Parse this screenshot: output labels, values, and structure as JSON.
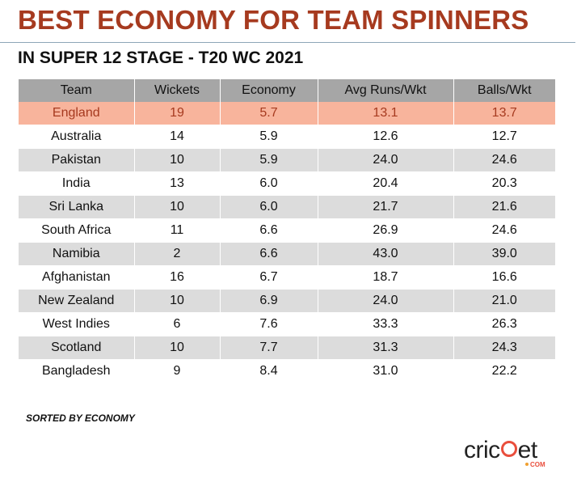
{
  "title": "BEST ECONOMY FOR TEAM SPINNERS",
  "subtitle": "IN SUPER 12 STAGE - T20 WC 2021",
  "footnote": "SORTED BY ECONOMY",
  "logo": {
    "word_start": "cric",
    "word_end": "et",
    "sub": "COM"
  },
  "colors": {
    "title": "#a63a1f",
    "header_bg": "#a6a6a6",
    "stripe": "#dcdcdc",
    "highlight_bg": "#f8b49c",
    "highlight_text": "#a63a1f",
    "logo_accent": "#e94e3c"
  },
  "chart_data": {
    "type": "table",
    "columns": [
      "Team",
      "Wickets",
      "Economy",
      "Avg Runs/Wkt",
      "Balls/Wkt"
    ],
    "highlighted_row": "England",
    "rows": [
      [
        "England",
        "19",
        "5.7",
        "13.1",
        "13.7"
      ],
      [
        "Australia",
        "14",
        "5.9",
        "12.6",
        "12.7"
      ],
      [
        "Pakistan",
        "10",
        "5.9",
        "24.0",
        "24.6"
      ],
      [
        "India",
        "13",
        "6.0",
        "20.4",
        "20.3"
      ],
      [
        "Sri Lanka",
        "10",
        "6.0",
        "21.7",
        "21.6"
      ],
      [
        "South Africa",
        "11",
        "6.6",
        "26.9",
        "24.6"
      ],
      [
        "Namibia",
        "2",
        "6.6",
        "43.0",
        "39.0"
      ],
      [
        "Afghanistan",
        "16",
        "6.7",
        "18.7",
        "16.6"
      ],
      [
        "New Zealand",
        "10",
        "6.9",
        "24.0",
        "21.0"
      ],
      [
        "West Indies",
        "6",
        "7.6",
        "33.3",
        "26.3"
      ],
      [
        "Scotland",
        "10",
        "7.7",
        "31.3",
        "24.3"
      ],
      [
        "Bangladesh",
        "9",
        "8.4",
        "31.0",
        "22.2"
      ]
    ]
  }
}
